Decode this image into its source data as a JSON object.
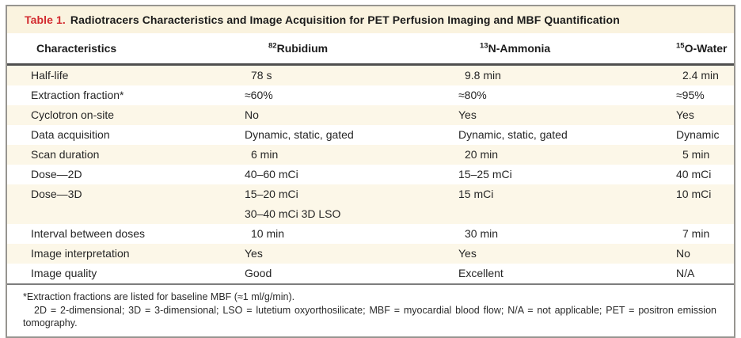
{
  "table": {
    "title_label": "Table 1.",
    "title_text": "Radiotracers Characteristics and Image Acquisition for PET Perfusion Imaging and MBF Quantification",
    "columns": {
      "characteristics": "Characteristics",
      "rubidium": {
        "sup": "82",
        "name": "Rubidium"
      },
      "ammonia": {
        "sup": "13",
        "name": "N-Ammonia"
      },
      "water": {
        "sup": "15",
        "name": "O-Water"
      }
    },
    "rows": [
      {
        "label": "Half-life",
        "rubidium": "78 s",
        "ammonia": "9.8 min",
        "water": "2.4 min"
      },
      {
        "label": "Extraction fraction*",
        "rubidium": "≈60%",
        "ammonia": "≈80%",
        "water": "≈95%"
      },
      {
        "label": "Cyclotron on-site",
        "rubidium": "No",
        "ammonia": "Yes",
        "water": "Yes"
      },
      {
        "label": "Data acquisition",
        "rubidium": "Dynamic, static, gated",
        "ammonia": "Dynamic, static, gated",
        "water": "Dynamic"
      },
      {
        "label": "Scan duration",
        "rubidium": "6 min",
        "ammonia": "20 min",
        "water": "5 min"
      },
      {
        "label": "Dose—2D",
        "rubidium": "40–60 mCi",
        "ammonia": "15–25 mCi",
        "water": "40 mCi"
      },
      {
        "label": "Dose—3D",
        "rubidium": "15–20 mCi",
        "rubidium_line2": "30–40 mCi 3D LSO",
        "ammonia": "15 mCi",
        "water": "10 mCi"
      },
      {
        "label": "Interval between doses",
        "rubidium": "10 min",
        "ammonia": "30 min",
        "water": "7 min"
      },
      {
        "label": "Image interpretation",
        "rubidium": "Yes",
        "ammonia": "Yes",
        "water": "No"
      },
      {
        "label": "Image quality",
        "rubidium": "Good",
        "ammonia": "Excellent",
        "water": "N/A"
      }
    ],
    "footnotes": {
      "extraction_note": "*Extraction fractions are listed for baseline MBF (≈1 ml/g/min).",
      "abbreviations": "2D = 2-dimensional; 3D = 3-dimensional; LSO = lutetium oxyorthosilicate; MBF = myocardial blood flow; N/A = not applicable; PET = positron emission tomography."
    },
    "colors": {
      "accent_red": "#d2292e",
      "cream_band": "#fcf7e8",
      "title_band": "#faf3df",
      "header_rule": "#4f4f4f",
      "outer_border": "#979590"
    }
  }
}
